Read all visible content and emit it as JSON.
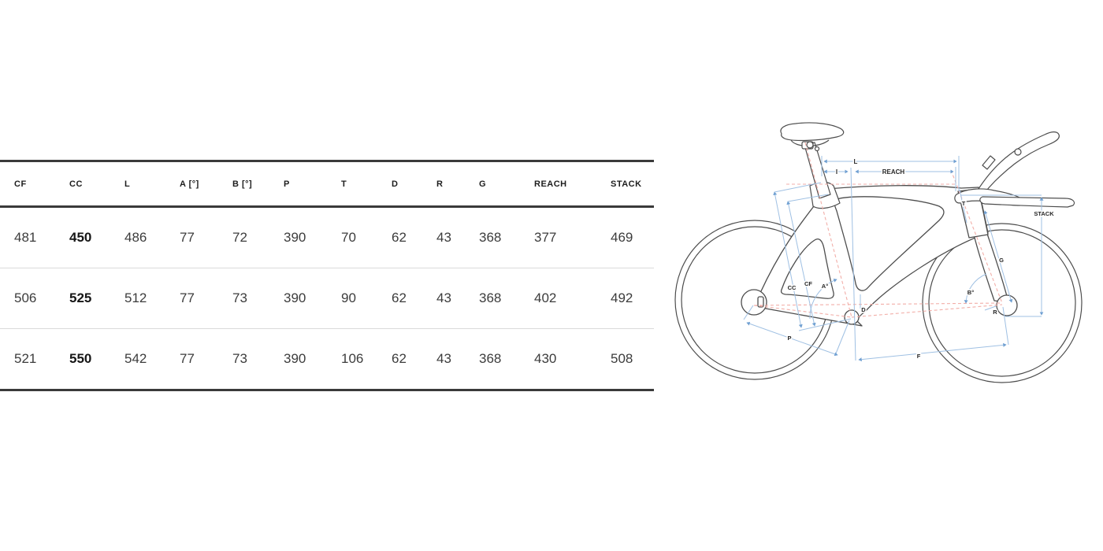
{
  "table": {
    "columns": [
      "CF",
      "CC",
      "L",
      "A [°]",
      "B [°]",
      "P",
      "T",
      "D",
      "R",
      "G",
      "REACH",
      "STACK"
    ],
    "rows": [
      [
        "481",
        "450",
        "486",
        "77",
        "72",
        "390",
        "70",
        "62",
        "43",
        "368",
        "377",
        "469"
      ],
      [
        "506",
        "525",
        "512",
        "77",
        "73",
        "390",
        "90",
        "62",
        "43",
        "368",
        "402",
        "492"
      ],
      [
        "521",
        "550",
        "542",
        "77",
        "73",
        "390",
        "106",
        "62",
        "43",
        "368",
        "430",
        "508"
      ]
    ],
    "bold_column_index": 1
  },
  "chart_data": {
    "type": "table",
    "columns": [
      "CF",
      "CC",
      "L",
      "A [°]",
      "B [°]",
      "P",
      "T",
      "D",
      "R",
      "G",
      "REACH",
      "STACK"
    ],
    "rows": [
      [
        481,
        450,
        486,
        77,
        72,
        390,
        70,
        62,
        43,
        368,
        377,
        469
      ],
      [
        506,
        525,
        512,
        77,
        73,
        390,
        90,
        62,
        43,
        368,
        402,
        492
      ],
      [
        521,
        550,
        542,
        77,
        73,
        390,
        106,
        62,
        43,
        368,
        430,
        508
      ]
    ]
  },
  "diagram": {
    "description": "bike geometry dimension drawing",
    "labels": {
      "l": "L",
      "i": "I",
      "reach": "REACH",
      "t": "T",
      "stack": "STACK",
      "g": "G",
      "cc": "CC",
      "cf": "CF",
      "a_angle": "A°",
      "b_angle": "B°",
      "d": "D",
      "r": "R",
      "p": "P",
      "f": "F"
    },
    "colors": {
      "bike_outline": "#4d4d4d",
      "measure_line": "#9fc0e3",
      "measure_arrow": "#70a0d2",
      "axis_dashed": "#f2aea8",
      "label_text": "#262626",
      "table_rule": "#3a3a3a",
      "row_separator": "#dadada"
    }
  }
}
